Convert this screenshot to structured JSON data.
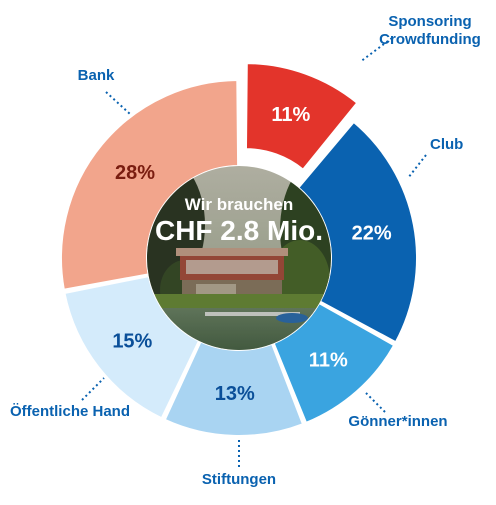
{
  "chart_data": {
    "type": "pie",
    "center_text": {
      "line1": "Wir brauchen",
      "line2": "CHF 2.8 Mio."
    },
    "slices": [
      {
        "label_lines": [
          "Sponsoring",
          "Crowdfunding"
        ],
        "value": 11,
        "pct_label": "11%",
        "color": "#e3342b",
        "label_color": "#0a62b0",
        "pct_color": "#ffffff",
        "exploded": true
      },
      {
        "label_lines": [
          "Club"
        ],
        "value": 22,
        "pct_label": "22%",
        "color": "#0a62b0",
        "label_color": "#0a62b0",
        "pct_color": "#ffffff"
      },
      {
        "label_lines": [
          "Gönner*innen"
        ],
        "value": 11,
        "pct_label": "11%",
        "color": "#3aa4e0",
        "label_color": "#0a62b0",
        "pct_color": "#ffffff"
      },
      {
        "label_lines": [
          "Stiftungen"
        ],
        "value": 13,
        "pct_label": "13%",
        "color": "#a9d4f2",
        "label_color": "#0a62b0",
        "pct_color": "#0a4f99"
      },
      {
        "label_lines": [
          "Öffentliche Hand"
        ],
        "value": 15,
        "pct_label": "15%",
        "color": "#d4ebfb",
        "label_color": "#0a62b0",
        "pct_color": "#0a4f99"
      },
      {
        "label_lines": [
          "Bank"
        ],
        "value": 28,
        "pct_label": "28%",
        "color": "#f2a58c",
        "label_color": "#0a62b0",
        "pct_color": "#7a1d10"
      }
    ]
  }
}
